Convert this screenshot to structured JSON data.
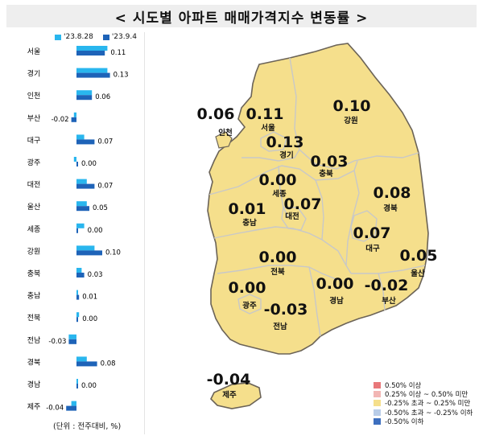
{
  "title": "< 시도별 아파트 매매가격지수 변동률 >",
  "unit_note": "(단위 : 전주대비, %)",
  "colors": {
    "prev_week": "#29b6ee",
    "curr_week": "#1e63b8",
    "map_fill": "#f5df8c",
    "map_border": "#c8c8c8",
    "map_outline": "#6b6357"
  },
  "chart_data": {
    "type": "bar",
    "orientation": "horizontal",
    "categories": [
      "서울",
      "경기",
      "인천",
      "부산",
      "대구",
      "광주",
      "대전",
      "울산",
      "세종",
      "강원",
      "충북",
      "충남",
      "전북",
      "전남",
      "경북",
      "경남",
      "제주"
    ],
    "series": [
      {
        "name": "'23.8.28",
        "values": [
          0.12,
          0.12,
          0.06,
          -0.01,
          0.03,
          -0.01,
          0.04,
          0.04,
          0.03,
          0.07,
          0.02,
          0.0,
          0.01,
          -0.03,
          0.04,
          0.0,
          -0.02
        ]
      },
      {
        "name": "'23.9.4",
        "values": [
          0.11,
          0.13,
          0.06,
          -0.02,
          0.07,
          0.0,
          0.07,
          0.05,
          0.0,
          0.1,
          0.03,
          0.01,
          0.0,
          -0.03,
          0.08,
          0.0,
          -0.04
        ]
      }
    ],
    "value_labels": [
      "0.11",
      "0.13",
      "0.06",
      "-0.02",
      "0.07",
      "0.00",
      "0.07",
      "0.05",
      "0.00",
      "0.10",
      "0.03",
      "0.01",
      "0.00",
      "-0.03",
      "0.08",
      "0.00",
      "-0.04"
    ]
  },
  "map": {
    "regions": [
      {
        "name": "서울",
        "value": "0.11"
      },
      {
        "name": "경기",
        "value": "0.13"
      },
      {
        "name": "인천",
        "value": "0.06"
      },
      {
        "name": "강원",
        "value": "0.10"
      },
      {
        "name": "충북",
        "value": "0.03"
      },
      {
        "name": "세종",
        "value": "0.00"
      },
      {
        "name": "대전",
        "value": "0.07"
      },
      {
        "name": "충남",
        "value": "0.01"
      },
      {
        "name": "경북",
        "value": "0.08"
      },
      {
        "name": "대구",
        "value": "0.07"
      },
      {
        "name": "울산",
        "value": "0.05"
      },
      {
        "name": "전북",
        "value": "0.00"
      },
      {
        "name": "광주",
        "value": "0.00"
      },
      {
        "name": "경남",
        "value": "0.00"
      },
      {
        "name": "부산",
        "value": "-0.02"
      },
      {
        "name": "전남",
        "value": "-0.03"
      },
      {
        "name": "제주",
        "value": "-0.04"
      }
    ],
    "legend": [
      {
        "label": "0.50% 이상",
        "color": "#e8787a"
      },
      {
        "label": "0.25% 이상 ~ 0.50% 미만",
        "color": "#f2b6b4"
      },
      {
        "label": "-0.25% 초과 ~ 0.25% 미만",
        "color": "#f5df8c"
      },
      {
        "label": "-0.50% 초과 ~ -0.25% 이하",
        "color": "#b9cde8"
      },
      {
        "label": "-0.50% 이하",
        "color": "#3d6fbf"
      }
    ]
  }
}
